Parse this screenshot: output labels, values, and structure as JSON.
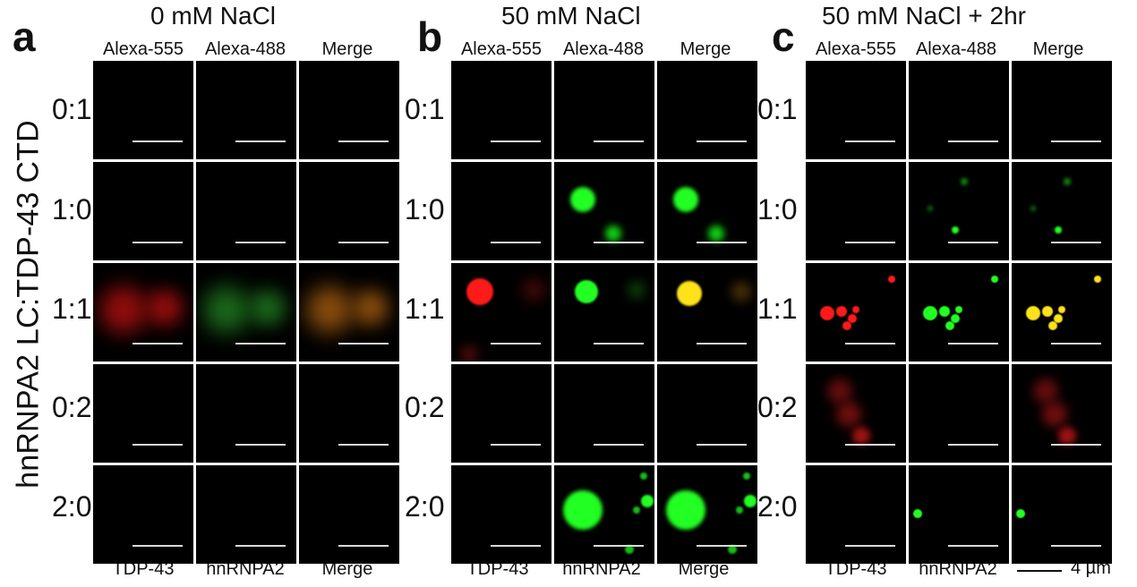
{
  "y_axis_label": "hnRNPA2 LC:TDP-43 CTD",
  "row_labels": [
    "0:1",
    "1:0",
    "1:1",
    "0:2",
    "2:0"
  ],
  "panels": [
    {
      "letter": "a",
      "condition": "0 mM NaCl",
      "channels": [
        "Alexa-555",
        "Alexa-488",
        "Merge"
      ],
      "bottom_labels": [
        "TDP-43",
        "hnRNPA2",
        "Merge"
      ]
    },
    {
      "letter": "b",
      "condition": "50 mM NaCl",
      "channels": [
        "Alexa-555",
        "Alexa-488",
        "Merge"
      ],
      "bottom_labels": [
        "TDP-43",
        "hnRNPA2",
        "Merge"
      ]
    },
    {
      "letter": "c",
      "condition": "50 mM NaCl + 2hr",
      "channels": [
        "Alexa-555",
        "Alexa-488",
        "Merge"
      ],
      "bottom_labels": [
        "TDP-43",
        "hnRNPA2",
        ""
      ]
    }
  ],
  "scale_legend": "4 µm",
  "colors": {
    "red": "#ff1a1a",
    "green": "#22ff22",
    "yellow": "#ffe21a",
    "orange": "#c97a10",
    "background": "#000000"
  }
}
